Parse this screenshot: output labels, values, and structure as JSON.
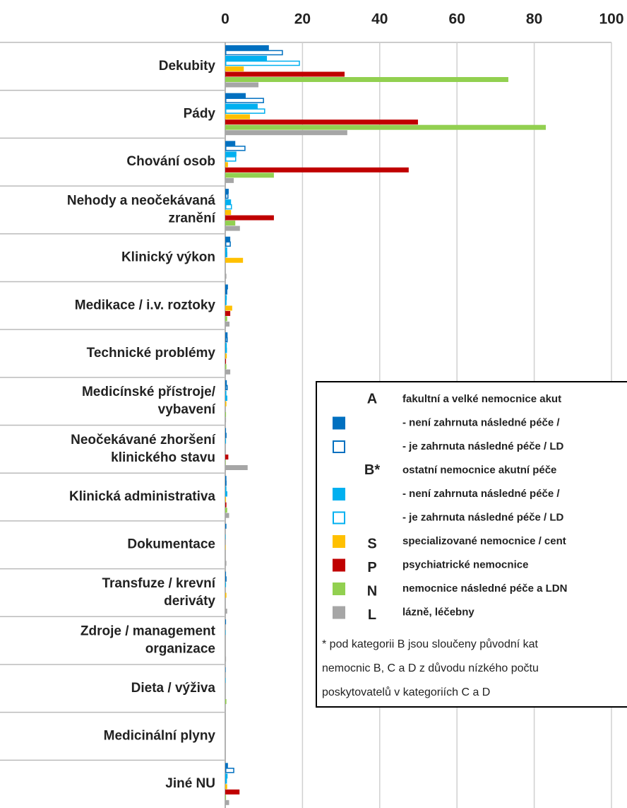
{
  "chart_data": {
    "type": "hbar",
    "categories": [
      "Dekubity",
      "Pády",
      "Chování osob",
      "Nehody a neočekávaná\nzranění",
      "Klinický výkon",
      "Medikace / i.v. roztoky",
      "Technické problémy",
      "Medicínské přístroje/\nvybavení",
      "Neočekávané zhoršení\nklinického stavu",
      "Klinická administrativa",
      "Dokumentace",
      "Transfuze / krevní\nderiváty",
      "Zdroje / management\norganizace",
      "Dieta / výživa",
      "Medicinální plyny",
      "Jiné NU"
    ],
    "series": [
      {
        "name": "- není zahrnuta následné péče /",
        "color": "#0070c0",
        "outline": false,
        "values": [
          11.3,
          5.3,
          2.6,
          0.9,
          1.3,
          0.7,
          0.6,
          0.4,
          0.2,
          0.3,
          0.3,
          0.2,
          0.2,
          0.1,
          0,
          0.7
        ]
      },
      {
        "name": "- je zahrnuta následné péče / LD",
        "color": "#0070c0",
        "outline": true,
        "values": [
          14.8,
          9.9,
          5.1,
          0.7,
          1.3,
          0.4,
          0.5,
          0.5,
          0.2,
          0.2,
          0.1,
          0.2,
          0.1,
          0.1,
          0,
          2.2
        ]
      },
      {
        "name": "- není zahrnuta následné péče /",
        "color": "#00b0f0",
        "outline": false,
        "values": [
          10.8,
          8.4,
          2.9,
          1.5,
          0.5,
          0.4,
          0.4,
          0.3,
          0.2,
          0.3,
          0.1,
          0.2,
          0.1,
          0.1,
          0,
          0.6
        ]
      },
      {
        "name": "- je zahrnuta následné péče / LD",
        "color": "#00b0f0",
        "outline": true,
        "values": [
          19.2,
          10.2,
          2.7,
          1.6,
          0.4,
          0.2,
          0.3,
          0.4,
          0.1,
          0.4,
          0.1,
          0.1,
          0.1,
          0.1,
          0,
          0.3
        ]
      },
      {
        "name": "specializované nemocnice / cent",
        "letter": "S",
        "color": "#ffc000",
        "outline": false,
        "values": [
          4.8,
          6.4,
          0.7,
          1.5,
          4.6,
          1.8,
          0.4,
          0.3,
          0,
          0.2,
          0.1,
          0.3,
          0,
          0,
          0,
          0.5
        ]
      },
      {
        "name": "psychiatrické nemocnice",
        "letter": "P",
        "color": "#c00000",
        "outline": false,
        "values": [
          30.9,
          49.9,
          47.5,
          12.6,
          0,
          1.3,
          0.2,
          0,
          0.8,
          0.3,
          0,
          0,
          0,
          0,
          0,
          3.7
        ]
      },
      {
        "name": "nemocnice následné péče a LDN",
        "letter": "N",
        "color": "#92d050",
        "outline": false,
        "values": [
          73.3,
          83,
          12.6,
          2.6,
          0,
          0.5,
          0.3,
          0.2,
          0.1,
          0.5,
          0,
          0,
          0,
          0.3,
          0,
          0.2
        ]
      },
      {
        "name": "lázně, léčebny",
        "letter": "L",
        "color": "#a6a6a6",
        "outline": false,
        "values": [
          8.6,
          31.6,
          2.2,
          3.8,
          0.3,
          1.1,
          1.3,
          0.2,
          5.8,
          1.0,
          0.3,
          0.5,
          0.2,
          0.1,
          0,
          1.0
        ]
      }
    ],
    "legend_groups": [
      {
        "letter": "A",
        "label": "fakultní a velké nemocnice akut"
      },
      {
        "letter": "B*",
        "label": "ostatní nemocnice akutní péče"
      }
    ],
    "footnote": [
      "* pod kategorii B jsou sloučeny původní kat",
      "nemocnic B, C a D z důvodu nízkého počtu",
      "poskytovatelů v kategoriích C a D"
    ],
    "xlim": [
      0,
      100
    ],
    "xticks": [
      0,
      20,
      40,
      60,
      80,
      100
    ],
    "grid": true
  }
}
